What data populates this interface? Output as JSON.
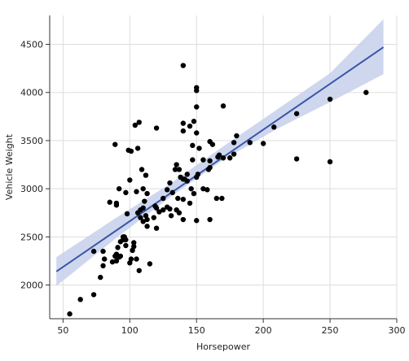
{
  "chart_data": {
    "type": "scatter",
    "xlabel": "Horsepower",
    "ylabel": "Vehicle Weight",
    "xlim": [
      40,
      300
    ],
    "ylim": [
      1650,
      4800
    ],
    "x_ticks": [
      50,
      100,
      150,
      200,
      250,
      300
    ],
    "y_ticks": [
      2000,
      2500,
      3000,
      3500,
      4000,
      4500
    ],
    "grid": true,
    "legend": "none",
    "points": [
      [
        55,
        1700
      ],
      [
        63,
        1850
      ],
      [
        73,
        1900
      ],
      [
        78,
        2080
      ],
      [
        80,
        2200
      ],
      [
        81,
        2270
      ],
      [
        80,
        2350
      ],
      [
        73,
        2350
      ],
      [
        87,
        2240
      ],
      [
        89,
        2300
      ],
      [
        90,
        2250
      ],
      [
        90,
        2320
      ],
      [
        91,
        2390
      ],
      [
        92,
        2290
      ],
      [
        93,
        2300
      ],
      [
        93,
        2450
      ],
      [
        95,
        2500
      ],
      [
        95,
        2470
      ],
      [
        97,
        2470
      ],
      [
        97,
        2410
      ],
      [
        98,
        2740
      ],
      [
        100,
        2230
      ],
      [
        101,
        2270
      ],
      [
        102,
        2360
      ],
      [
        103,
        2440
      ],
      [
        105,
        2270
      ],
      [
        106,
        2750
      ],
      [
        107,
        2150
      ],
      [
        108,
        2700
      ],
      [
        110,
        2660
      ],
      [
        110,
        2800
      ],
      [
        112,
        2720
      ],
      [
        113,
        2680
      ],
      [
        115,
        2220
      ],
      [
        118,
        2700
      ],
      [
        120,
        2590
      ],
      [
        120,
        2800
      ],
      [
        122,
        2760
      ],
      [
        125,
        2780
      ],
      [
        128,
        2990
      ],
      [
        130,
        2790
      ],
      [
        131,
        2720
      ],
      [
        132,
        2960
      ],
      [
        134,
        3200
      ],
      [
        135,
        2780
      ],
      [
        136,
        2900
      ],
      [
        137,
        2750
      ],
      [
        138,
        3120
      ],
      [
        140,
        2680
      ],
      [
        140,
        2890
      ],
      [
        140,
        3100
      ],
      [
        141,
        3100
      ],
      [
        143,
        3150
      ],
      [
        145,
        2850
      ],
      [
        146,
        3000
      ],
      [
        148,
        2950
      ],
      [
        150,
        2670
      ],
      [
        150,
        3120
      ],
      [
        151,
        3150
      ],
      [
        152,
        3420
      ],
      [
        155,
        3000
      ],
      [
        158,
        2990
      ],
      [
        159,
        3200
      ],
      [
        160,
        2680
      ],
      [
        160,
        3220
      ],
      [
        162,
        3460
      ],
      [
        165,
        2900
      ],
      [
        166,
        3330
      ],
      [
        167,
        3350
      ],
      [
        169,
        2900
      ],
      [
        170,
        3320
      ],
      [
        175,
        3320
      ],
      [
        178,
        3360
      ],
      [
        178,
        3480
      ],
      [
        180,
        3550
      ],
      [
        190,
        3480
      ],
      [
        200,
        3470
      ],
      [
        208,
        3640
      ],
      [
        225,
        3780
      ],
      [
        225,
        3310
      ],
      [
        250,
        3930
      ],
      [
        250,
        3280
      ],
      [
        277,
        4000
      ],
      [
        90,
        2850
      ],
      [
        89,
        3460
      ],
      [
        90,
        2830
      ],
      [
        97,
        2960
      ],
      [
        100,
        3090
      ],
      [
        101,
        3390
      ],
      [
        105,
        2970
      ],
      [
        106,
        3420
      ],
      [
        108,
        2780
      ],
      [
        109,
        3200
      ],
      [
        110,
        3000
      ],
      [
        111,
        2870
      ],
      [
        112,
        3140
      ],
      [
        113,
        2950
      ],
      [
        120,
        3630
      ],
      [
        125,
        2900
      ],
      [
        130,
        3060
      ],
      [
        135,
        3250
      ],
      [
        137,
        3200
      ],
      [
        140,
        3600
      ],
      [
        140,
        3680
      ],
      [
        140,
        4280
      ],
      [
        145,
        3650
      ],
      [
        147,
        3300
      ],
      [
        148,
        3700
      ],
      [
        150,
        3850
      ],
      [
        150,
        3580
      ],
      [
        150,
        4020
      ],
      [
        150,
        4050
      ],
      [
        155,
        3300
      ],
      [
        160,
        3290
      ],
      [
        160,
        3490
      ],
      [
        170,
        3860
      ],
      [
        107,
        3690
      ],
      [
        104,
        3660
      ],
      [
        99,
        3400
      ],
      [
        96,
        2500
      ],
      [
        85,
        2860
      ],
      [
        103,
        2400
      ],
      [
        92,
        3000
      ],
      [
        113,
        2610
      ],
      [
        119,
        2820
      ],
      [
        128,
        2810
      ],
      [
        143,
        3080
      ],
      [
        147,
        3450
      ]
    ],
    "regression": {
      "x": [
        45,
        290
      ],
      "y": [
        2140,
        4470
      ]
    },
    "band": {
      "x": [
        45,
        90,
        130,
        170,
        210,
        250,
        290
      ],
      "lower": [
        1990,
        2490,
        2910,
        3300,
        3620,
        3900,
        4190
      ],
      "upper": [
        2290,
        2700,
        3050,
        3440,
        3820,
        4200,
        4760
      ]
    },
    "colors": {
      "points": "#000000",
      "line": "#3a55a6",
      "band": "#c9d3ec",
      "grid": "#dddddd",
      "axis": "#333333"
    }
  }
}
